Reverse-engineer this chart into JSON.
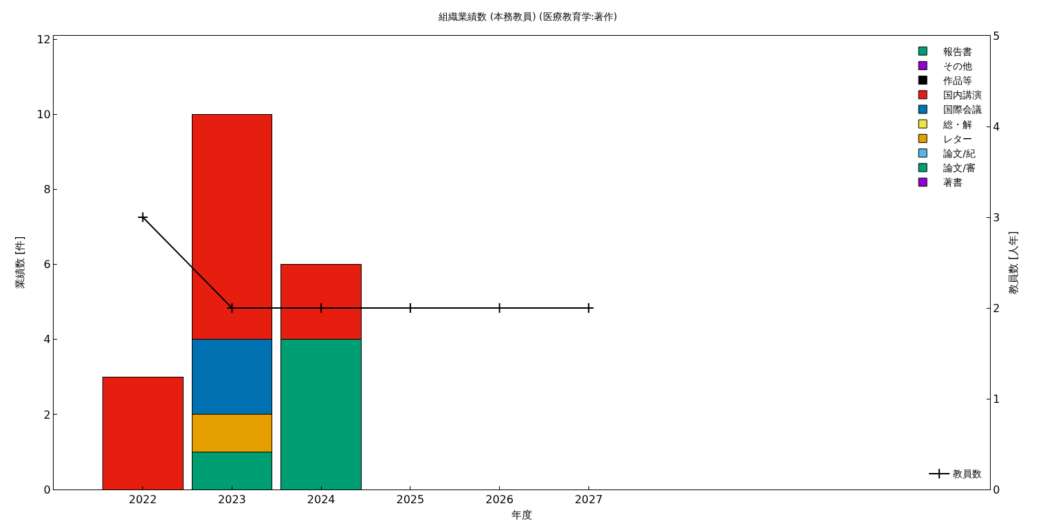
{
  "chart_data": {
    "type": "bar",
    "title": "組織業績数 (本務教員) (医療教育学:著作)",
    "xlabel": "年度",
    "ylabel": "業績数 [件]",
    "y2label": "教員数 [人年]",
    "x": [
      2022,
      2023,
      2024,
      2025,
      2026,
      2027
    ],
    "stacked": true,
    "legend": "top right",
    "xlim": [
      2021,
      2031.5
    ],
    "xticks": [
      2022,
      2023,
      2024,
      2025,
      2026,
      2027
    ],
    "ylim": [
      0,
      12.1
    ],
    "yticks": [
      0,
      2,
      4,
      6,
      8,
      10,
      12
    ],
    "y2lim": [
      0,
      5
    ],
    "y2ticks": [
      0,
      1,
      2,
      3,
      4,
      5
    ],
    "series": [
      {
        "name": "著書",
        "color": "#9400d3",
        "values": [
          null,
          null,
          null,
          null,
          null,
          null
        ]
      },
      {
        "name": "論文/審",
        "color": "#009e73",
        "values": [
          null,
          1,
          4,
          null,
          null,
          null
        ]
      },
      {
        "name": "論文/紀",
        "color": "#56b4e9",
        "values": [
          null,
          null,
          null,
          null,
          null,
          null
        ]
      },
      {
        "name": "レター",
        "color": "#e69f00",
        "values": [
          null,
          1,
          null,
          null,
          null,
          null
        ]
      },
      {
        "name": "総・解",
        "color": "#f0e442",
        "values": [
          null,
          null,
          null,
          null,
          null,
          null
        ]
      },
      {
        "name": "国際会議",
        "color": "#0072b2",
        "values": [
          null,
          2,
          null,
          null,
          null,
          null
        ]
      },
      {
        "name": "国内講演",
        "color": "#e51e10",
        "values": [
          3,
          6,
          2,
          null,
          null,
          null
        ]
      },
      {
        "name": "作品等",
        "color": "#000000",
        "values": [
          null,
          null,
          null,
          null,
          null,
          null
        ]
      },
      {
        "name": "その他",
        "color": "#9400d3",
        "values": [
          null,
          null,
          null,
          null,
          null,
          null
        ]
      },
      {
        "name": "報告書",
        "color": "#009e73",
        "values": [
          null,
          null,
          null,
          null,
          null,
          null
        ]
      },
      {
        "name": "教員数",
        "type": "line",
        "axis": "y2",
        "color": "#000000",
        "marker": "cross",
        "line_style": "solid",
        "values": [
          3,
          2,
          2,
          2,
          2,
          2
        ]
      }
    ]
  }
}
